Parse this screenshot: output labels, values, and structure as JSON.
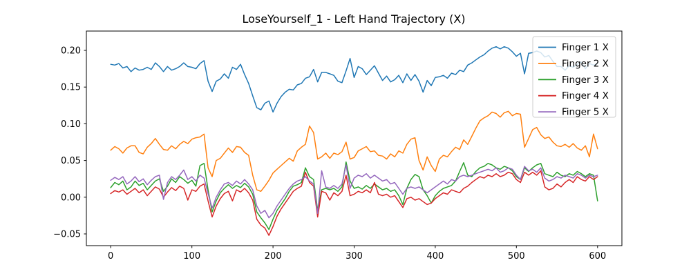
{
  "chart_data": {
    "type": "line",
    "title": "LoseYourself_1 - Left Hand Trajectory (X)",
    "xlabel": "",
    "ylabel": "",
    "grid": false,
    "xlim": [
      -30,
      630
    ],
    "ylim": [
      -0.066,
      0.2263
    ],
    "x_ticks": [
      0,
      100,
      200,
      300,
      400,
      500,
      600
    ],
    "x_tick_labels": [
      "0",
      "100",
      "200",
      "300",
      "400",
      "500",
      "600"
    ],
    "y_ticks": [
      -0.05,
      0.0,
      0.05,
      0.1,
      0.15,
      0.2
    ],
    "y_tick_labels": [
      "−0.05",
      "0.00",
      "0.05",
      "0.10",
      "0.15",
      "0.20"
    ],
    "legend": {
      "position": "upper right",
      "entries": [
        "Finger 1 X",
        "Finger 2 X",
        "Finger 3 X",
        "Finger 4 X",
        "Finger 5 X"
      ]
    },
    "x": [
      0,
      5,
      10,
      15,
      20,
      25,
      30,
      35,
      40,
      45,
      50,
      55,
      60,
      65,
      70,
      75,
      80,
      85,
      90,
      95,
      100,
      105,
      110,
      115,
      120,
      125,
      130,
      135,
      140,
      145,
      150,
      155,
      160,
      165,
      170,
      175,
      180,
      185,
      190,
      195,
      200,
      205,
      210,
      215,
      220,
      225,
      230,
      235,
      240,
      245,
      250,
      255,
      260,
      265,
      270,
      275,
      280,
      285,
      290,
      295,
      300,
      305,
      310,
      315,
      320,
      325,
      330,
      335,
      340,
      345,
      350,
      355,
      360,
      365,
      370,
      375,
      380,
      385,
      390,
      395,
      400,
      405,
      410,
      415,
      420,
      425,
      430,
      435,
      440,
      445,
      450,
      455,
      460,
      465,
      470,
      475,
      480,
      485,
      490,
      495,
      500,
      505,
      510,
      515,
      520,
      525,
      530,
      535,
      540,
      545,
      550,
      555,
      560,
      565,
      570,
      575,
      580,
      585,
      590,
      595,
      600
    ],
    "series": [
      {
        "name": "Finger 1 X",
        "color": "#1f77b4",
        "values": [
          0.181,
          0.18,
          0.182,
          0.176,
          0.178,
          0.171,
          0.176,
          0.173,
          0.174,
          0.177,
          0.174,
          0.183,
          0.178,
          0.171,
          0.178,
          0.173,
          0.175,
          0.178,
          0.183,
          0.178,
          0.177,
          0.175,
          0.182,
          0.186,
          0.158,
          0.144,
          0.158,
          0.161,
          0.168,
          0.162,
          0.177,
          0.174,
          0.181,
          0.167,
          0.155,
          0.138,
          0.122,
          0.119,
          0.128,
          0.131,
          0.116,
          0.128,
          0.137,
          0.143,
          0.147,
          0.146,
          0.153,
          0.155,
          0.162,
          0.164,
          0.174,
          0.157,
          0.17,
          0.17,
          0.168,
          0.166,
          0.158,
          0.156,
          0.172,
          0.189,
          0.163,
          0.178,
          0.175,
          0.167,
          0.173,
          0.179,
          0.169,
          0.159,
          0.165,
          0.157,
          0.16,
          0.166,
          0.156,
          0.168,
          0.159,
          0.167,
          0.158,
          0.143,
          0.159,
          0.152,
          0.163,
          0.164,
          0.166,
          0.162,
          0.169,
          0.167,
          0.173,
          0.171,
          0.18,
          0.183,
          0.187,
          0.191,
          0.194,
          0.199,
          0.203,
          0.205,
          0.202,
          0.205,
          0.203,
          0.198,
          0.192,
          0.196,
          0.168,
          0.196,
          0.197,
          0.199,
          0.197,
          0.191,
          0.193,
          0.185,
          0.178,
          0.178,
          0.173,
          0.179,
          0.177,
          0.181,
          0.184,
          0.175,
          0.182,
          0.18,
          0.182
        ]
      },
      {
        "name": "Finger 2 X",
        "color": "#ff7f0e",
        "values": [
          0.064,
          0.069,
          0.066,
          0.06,
          0.067,
          0.07,
          0.07,
          0.061,
          0.059,
          0.068,
          0.073,
          0.08,
          0.072,
          0.065,
          0.064,
          0.07,
          0.066,
          0.072,
          0.076,
          0.073,
          0.079,
          0.081,
          0.082,
          0.086,
          0.04,
          0.028,
          0.05,
          0.053,
          0.06,
          0.067,
          0.061,
          0.069,
          0.068,
          0.061,
          0.057,
          0.03,
          0.01,
          0.008,
          0.015,
          0.023,
          0.033,
          0.038,
          0.043,
          0.048,
          0.053,
          0.049,
          0.063,
          0.068,
          0.072,
          0.097,
          0.088,
          0.052,
          0.055,
          0.06,
          0.053,
          0.06,
          0.058,
          0.062,
          0.075,
          0.052,
          0.054,
          0.063,
          0.066,
          0.069,
          0.062,
          0.063,
          0.057,
          0.056,
          0.052,
          0.059,
          0.055,
          0.063,
          0.06,
          0.072,
          0.079,
          0.081,
          0.05,
          0.037,
          0.055,
          0.043,
          0.035,
          0.052,
          0.057,
          0.055,
          0.062,
          0.068,
          0.065,
          0.078,
          0.072,
          0.083,
          0.094,
          0.104,
          0.108,
          0.111,
          0.116,
          0.114,
          0.109,
          0.115,
          0.117,
          0.111,
          0.114,
          0.113,
          0.068,
          0.08,
          0.092,
          0.095,
          0.085,
          0.08,
          0.082,
          0.075,
          0.07,
          0.069,
          0.072,
          0.068,
          0.073,
          0.067,
          0.064,
          0.07,
          0.055,
          0.086,
          0.066
        ]
      },
      {
        "name": "Finger 3 X",
        "color": "#2ca02c",
        "values": [
          0.013,
          0.02,
          0.017,
          0.022,
          0.01,
          0.014,
          0.022,
          0.016,
          0.019,
          0.01,
          0.016,
          0.022,
          0.025,
          0.008,
          0.015,
          0.025,
          0.02,
          0.028,
          0.024,
          0.019,
          0.023,
          0.015,
          0.043,
          0.046,
          0.01,
          -0.02,
          -0.005,
          0.006,
          0.012,
          0.017,
          0.012,
          0.016,
          0.013,
          0.019,
          0.014,
          0.004,
          -0.02,
          -0.028,
          -0.035,
          -0.044,
          -0.03,
          -0.018,
          -0.01,
          -0.002,
          0.008,
          0.015,
          0.017,
          0.02,
          0.04,
          0.028,
          0.024,
          -0.018,
          0.01,
          0.012,
          0.01,
          0.012,
          0.008,
          0.014,
          0.048,
          0.022,
          0.012,
          0.014,
          0.011,
          0.016,
          0.012,
          0.018,
          0.014,
          0.01,
          0.012,
          0.008,
          0.01,
          0.002,
          -0.01,
          0.012,
          0.024,
          0.031,
          0.028,
          0.01,
          0.002,
          -0.008,
          0.002,
          0.008,
          0.012,
          0.014,
          0.016,
          0.022,
          0.035,
          0.047,
          0.03,
          0.028,
          0.035,
          0.04,
          0.042,
          0.046,
          0.044,
          0.04,
          0.038,
          0.042,
          0.04,
          0.036,
          0.028,
          0.024,
          0.04,
          0.035,
          0.04,
          0.044,
          0.046,
          0.032,
          0.03,
          0.028,
          0.034,
          0.03,
          0.028,
          0.032,
          0.03,
          0.035,
          0.032,
          0.028,
          0.032,
          0.03,
          -0.005
        ]
      },
      {
        "name": "Finger 4 X",
        "color": "#d62728",
        "values": [
          0.005,
          0.009,
          0.007,
          0.01,
          0.004,
          0.008,
          0.012,
          0.006,
          0.01,
          0.002,
          0.008,
          0.014,
          0.011,
          0.0,
          0.007,
          0.013,
          0.009,
          0.015,
          0.012,
          -0.004,
          0.01,
          0.008,
          0.015,
          0.018,
          -0.005,
          -0.027,
          -0.012,
          -0.002,
          0.005,
          0.008,
          -0.005,
          0.01,
          0.007,
          0.012,
          0.006,
          -0.004,
          -0.03,
          -0.038,
          -0.042,
          -0.052,
          -0.04,
          -0.026,
          -0.016,
          -0.008,
          0.0,
          0.008,
          0.012,
          0.015,
          0.034,
          0.02,
          0.015,
          -0.027,
          0.008,
          0.006,
          -0.004,
          0.006,
          0.002,
          0.008,
          0.03,
          0.002,
          0.004,
          0.008,
          0.006,
          0.01,
          0.006,
          0.02,
          0.004,
          0.002,
          0.004,
          0.0,
          0.002,
          -0.006,
          -0.014,
          -0.002,
          0.0,
          -0.004,
          -0.002,
          -0.006,
          -0.01,
          -0.008,
          -0.002,
          0.002,
          0.006,
          0.004,
          0.01,
          0.008,
          0.006,
          0.012,
          0.015,
          0.02,
          0.024,
          0.028,
          0.026,
          0.03,
          0.028,
          0.032,
          0.028,
          0.03,
          0.034,
          0.032,
          0.024,
          0.02,
          0.034,
          0.03,
          0.034,
          0.03,
          0.036,
          0.014,
          0.01,
          0.012,
          0.018,
          0.014,
          0.02,
          0.024,
          0.02,
          0.028,
          0.024,
          0.022,
          0.028,
          0.024,
          0.028
        ]
      },
      {
        "name": "Finger 5 X",
        "color": "#9467bd",
        "values": [
          0.023,
          0.027,
          0.024,
          0.028,
          0.018,
          0.022,
          0.028,
          0.021,
          0.025,
          0.017,
          0.023,
          0.028,
          0.03,
          -0.003,
          0.02,
          0.028,
          0.024,
          0.03,
          0.037,
          0.024,
          0.028,
          0.022,
          0.03,
          0.026,
          0.005,
          -0.015,
          0.0,
          0.01,
          0.018,
          0.02,
          0.016,
          0.022,
          0.018,
          0.024,
          0.018,
          0.01,
          -0.012,
          -0.022,
          -0.018,
          -0.028,
          -0.022,
          -0.012,
          -0.004,
          0.004,
          0.012,
          0.018,
          0.022,
          0.024,
          0.028,
          0.022,
          0.018,
          -0.022,
          0.036,
          0.014,
          0.012,
          0.016,
          0.012,
          0.018,
          0.044,
          0.012,
          0.026,
          0.03,
          0.028,
          0.032,
          0.026,
          0.03,
          0.026,
          0.022,
          0.024,
          0.018,
          0.02,
          0.012,
          0.004,
          0.012,
          0.014,
          0.012,
          0.014,
          0.01,
          0.006,
          0.01,
          0.014,
          0.018,
          0.022,
          0.018,
          0.024,
          0.022,
          0.028,
          0.03,
          0.028,
          0.03,
          0.032,
          0.034,
          0.036,
          0.038,
          0.036,
          0.04,
          0.034,
          0.036,
          0.04,
          0.038,
          0.03,
          0.024,
          0.042,
          0.036,
          0.038,
          0.034,
          0.04,
          0.026,
          0.022,
          0.024,
          0.028,
          0.026,
          0.03,
          0.028,
          0.026,
          0.032,
          0.03,
          0.026,
          0.03,
          0.028,
          0.03
        ]
      }
    ],
    "colors": {
      "finger1": "#1f77b4",
      "finger2": "#ff7f0e",
      "finger3": "#2ca02c",
      "finger4": "#d62728",
      "finger5": "#9467bd",
      "spine": "#000000",
      "legend_border": "#cccccc"
    }
  }
}
